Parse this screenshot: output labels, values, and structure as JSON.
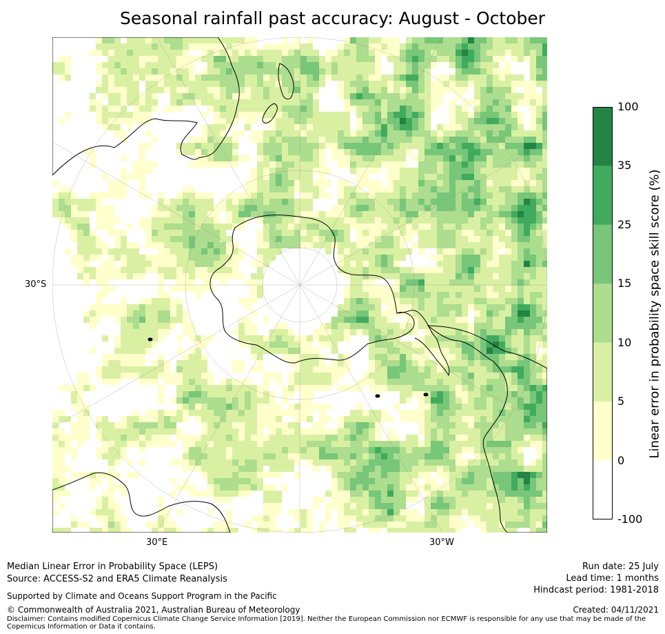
{
  "title": "Seasonal rainfall past accuracy: August - October",
  "map": {
    "projection": "south-polar-stereographic",
    "lat_label": "30°S",
    "lon_labels": [
      "30°E",
      "30°W"
    ],
    "land_visible": [
      "Antarctica",
      "Australia",
      "New Zealand",
      "South America",
      "Southern Africa"
    ]
  },
  "colorbar": {
    "label": "Linear error in probability space skill score (%)",
    "ticks": [
      "100",
      "35",
      "25",
      "15",
      "10",
      "5",
      "0",
      "-100"
    ],
    "colors": [
      "#ffffff",
      "#ffffcc",
      "#d9f0a3",
      "#addd8e",
      "#78c679",
      "#41ab5d",
      "#238443"
    ]
  },
  "footer": {
    "line1": "Median Linear Error in Probability Space (LEPS)",
    "line2": "Source: ACCESS-S2 and ERA5 Climate Reanalysis",
    "line3": "Supported by Climate and Oceans Support Program in the Pacific",
    "line4": "© Commonwealth of Australia 2021, Australian Bureau of Meteorology",
    "disclaimer": "Disclaimer: Contains modified Copernicus Climate Change Service Information [2019]. Neither the European Commission nor ECMWF is responsible for any use that may be made of the Copernicus Information or Data it contains.",
    "run_date": "Run date: 25 July",
    "lead_time": "Lead time: 1 months",
    "hindcast": "Hindcast period: 1981-2018",
    "created": "Created: 04/11/2021"
  }
}
